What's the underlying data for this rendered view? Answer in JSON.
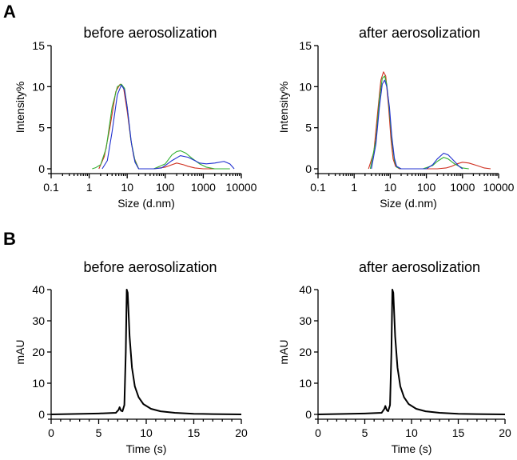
{
  "panel_labels": [
    "A",
    "B"
  ],
  "chart_data": [
    {
      "type": "line",
      "panel": "A",
      "title": "before aerosolization",
      "xlabel": "Size (d.nm)",
      "ylabel": "Intensity%",
      "xscale": "log",
      "xlim": [
        0.1,
        10000
      ],
      "ylim": [
        0,
        15
      ],
      "xticks": [
        "0.1",
        "1",
        "10",
        "100",
        "1000",
        "10000"
      ],
      "yticks": [
        "0",
        "5",
        "10",
        "15"
      ],
      "grid": false,
      "series": [
        {
          "name": "red",
          "color": "#d03020",
          "x": [
            1.8,
            2.5,
            3.5,
            5,
            6.5,
            8,
            10,
            12.5,
            15,
            20,
            50,
            100,
            150,
            200,
            300,
            400,
            600,
            1000,
            3000,
            5000
          ],
          "y": [
            0,
            1.5,
            5,
            9.4,
            10.3,
            9.9,
            7,
            3.5,
            1.4,
            0,
            0,
            0.2,
            0.5,
            0.7,
            0.5,
            0.3,
            0.1,
            0,
            0,
            0
          ]
        },
        {
          "name": "green",
          "color": "#30b030",
          "x": [
            1.2,
            1.5,
            2,
            2.8,
            4,
            5.5,
            7,
            8.5,
            10,
            12.5,
            16,
            20,
            50,
            100,
            150,
            200,
            250,
            350,
            500,
            800,
            1200,
            2000,
            5000
          ],
          "y": [
            0,
            0.15,
            0.5,
            2.5,
            7.5,
            10,
            10.3,
            9.8,
            7.5,
            3.5,
            1,
            0,
            0,
            0.6,
            1.7,
            2.1,
            2.2,
            1.9,
            1.3,
            0.6,
            0.2,
            0,
            0
          ]
        },
        {
          "name": "blue",
          "color": "#2030d0",
          "x": [
            2.2,
            3,
            4,
            5.5,
            7,
            8.5,
            10,
            13,
            16,
            20,
            50,
            80,
            100,
            150,
            250,
            400,
            600,
            800,
            1200,
            2000,
            3500,
            5000,
            6500
          ],
          "y": [
            0,
            1,
            4.5,
            9,
            10.2,
            9.6,
            7.5,
            3,
            0.8,
            0,
            0,
            0.1,
            0.4,
            1,
            1.6,
            1.4,
            1,
            0.7,
            0.6,
            0.7,
            0.9,
            0.6,
            0
          ]
        }
      ]
    },
    {
      "type": "line",
      "panel": "A",
      "title": "after aerosolization",
      "xlabel": "Size (d.nm)",
      "ylabel": "Intensity%",
      "xscale": "log",
      "xlim": [
        0.1,
        10000
      ],
      "ylim": [
        0,
        15
      ],
      "xticks": [
        "0.1",
        "1",
        "10",
        "100",
        "1000",
        "10000"
      ],
      "yticks": [
        "0",
        "5",
        "10",
        "15"
      ],
      "grid": false,
      "series": [
        {
          "name": "red",
          "color": "#d03020",
          "x": [
            2.5,
            3.5,
            4.5,
            5.5,
            6.5,
            7.5,
            9,
            10.5,
            12,
            14,
            18,
            50,
            200,
            350,
            500,
            700,
            1000,
            1500,
            2500,
            4000,
            6000
          ],
          "y": [
            0,
            2,
            7,
            10.8,
            11.8,
            11.3,
            7.5,
            3.5,
            1.2,
            0.3,
            0,
            0,
            0,
            0.1,
            0.3,
            0.6,
            0.8,
            0.7,
            0.4,
            0.1,
            0
          ]
        },
        {
          "name": "green",
          "color": "#30b030",
          "x": [
            2.8,
            4,
            5,
            6,
            7,
            8,
            9.5,
            11,
            13,
            15,
            20,
            80,
            150,
            200,
            300,
            400,
            600,
            1000,
            1500
          ],
          "y": [
            0,
            3.5,
            8.5,
            11,
            11.3,
            10.3,
            7,
            3.5,
            1,
            0.2,
            0,
            0,
            0.4,
            0.9,
            1.4,
            1.2,
            0.6,
            0.1,
            0
          ]
        },
        {
          "name": "blue",
          "color": "#2030d0",
          "x": [
            3,
            4,
            5,
            6,
            7,
            8,
            9.5,
            11,
            13,
            15,
            20,
            100,
            150,
            200,
            300,
            400,
            600,
            800,
            1000
          ],
          "y": [
            0,
            3,
            7.5,
            10.3,
            10.8,
            10,
            7.5,
            4,
            1.3,
            0.3,
            0,
            0,
            0.5,
            1.2,
            1.9,
            1.7,
            0.9,
            0.3,
            0
          ]
        }
      ]
    },
    {
      "type": "line",
      "panel": "B",
      "title": "before aerosolization",
      "xlabel": "Time (s)",
      "ylabel": "mAU",
      "xlim": [
        0,
        20
      ],
      "ylim": [
        0,
        40
      ],
      "xticks": [
        "0",
        "5",
        "10",
        "15",
        "20"
      ],
      "yticks": [
        "0",
        "10",
        "20",
        "30",
        "40"
      ],
      "grid": false,
      "series": [
        {
          "name": "trace",
          "color": "#000000",
          "x": [
            0,
            5,
            6.8,
            7.1,
            7.2,
            7.35,
            7.5,
            7.7,
            7.85,
            7.95,
            8.05,
            8.25,
            8.5,
            8.8,
            9.2,
            9.7,
            10.5,
            11.5,
            13,
            15,
            17,
            20
          ],
          "y": [
            0,
            0.3,
            0.5,
            1.5,
            2.3,
            1.2,
            1,
            3,
            20,
            40,
            39,
            25,
            15,
            9,
            5.5,
            3.3,
            1.8,
            1,
            0.5,
            0.2,
            0.1,
            0
          ]
        }
      ]
    },
    {
      "type": "line",
      "panel": "B",
      "title": "after aerosolization",
      "xlabel": "Time (s)",
      "ylabel": "mAU",
      "xlim": [
        0,
        20
      ],
      "ylim": [
        0,
        40
      ],
      "xticks": [
        "0",
        "5",
        "10",
        "15",
        "20"
      ],
      "yticks": [
        "0",
        "10",
        "20",
        "30",
        "40"
      ],
      "grid": false,
      "series": [
        {
          "name": "trace",
          "color": "#000000",
          "x": [
            0,
            5,
            6.8,
            7.1,
            7.2,
            7.35,
            7.5,
            7.7,
            7.85,
            7.95,
            8.05,
            8.25,
            8.5,
            8.8,
            9.2,
            9.7,
            10.5,
            11.5,
            13,
            15,
            17,
            20
          ],
          "y": [
            0,
            0.3,
            0.5,
            1.8,
            2.7,
            1.4,
            1,
            3,
            20,
            40,
            39,
            25,
            15,
            9,
            5.5,
            3.3,
            1.8,
            1,
            0.5,
            0.2,
            0.1,
            0
          ]
        }
      ]
    }
  ]
}
